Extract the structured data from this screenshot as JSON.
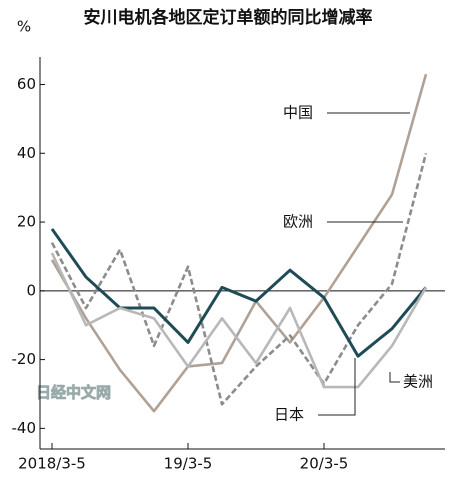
{
  "chart_data": {
    "type": "line",
    "title": "安川电机各地区定订单额的同比增减率",
    "y_label": "%",
    "watermark": "日经中文网",
    "categories": [
      "2018/3-5",
      null,
      null,
      null,
      "19/3-5",
      null,
      null,
      null,
      "20/3-5",
      null,
      null,
      null
    ],
    "series": [
      {
        "name": "中国",
        "color": "#b0a196",
        "dashed": false,
        "values": [
          9,
          -8,
          -23,
          -35,
          -22,
          -21,
          -3,
          -15,
          -2,
          13,
          28,
          63
        ]
      },
      {
        "name": "欧洲",
        "color": "#8c8c8c",
        "dashed": true,
        "values": [
          14,
          -5,
          12,
          -16,
          7,
          -33,
          -22,
          -13,
          -27,
          -10,
          2,
          40
        ]
      },
      {
        "name": "日本",
        "color": "#1f4b57",
        "dashed": false,
        "values": [
          18,
          4,
          -5,
          -5,
          -15,
          1,
          -3,
          6,
          -2,
          -19,
          -11,
          1
        ]
      },
      {
        "name": "美洲",
        "color": "#b8b8b8",
        "dashed": false,
        "values": [
          11,
          -10,
          -5,
          -8,
          -22,
          -8,
          -21,
          -5,
          -28,
          -28,
          -16,
          1
        ]
      }
    ],
    "ylim": [
      -46,
      68
    ],
    "yticks": [
      -40,
      -20,
      0,
      20,
      40,
      60
    ]
  }
}
